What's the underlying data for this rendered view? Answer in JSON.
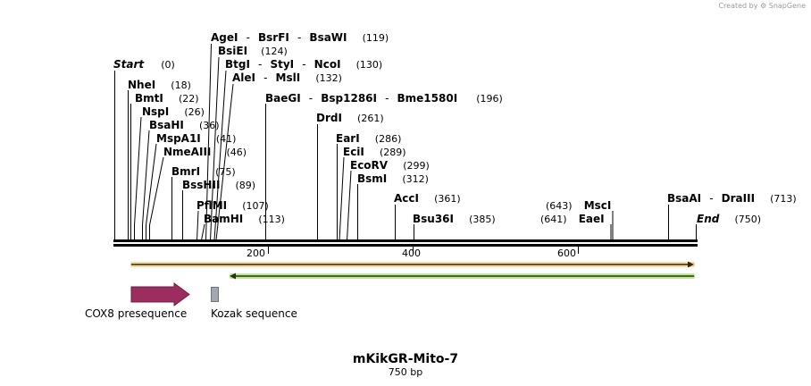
{
  "credit": {
    "prefix": "Created by",
    "brand": "SnapGene"
  },
  "map": {
    "name": "mKikGR-Mito-7",
    "length_label": "750 bp",
    "length_bp": 750,
    "ticks": [
      {
        "bp": 200,
        "label": "200"
      },
      {
        "bp": 400,
        "label": "400"
      },
      {
        "bp": 600,
        "label": "600"
      }
    ]
  },
  "sites": [
    {
      "id": "start",
      "names": [
        "Start"
      ],
      "pos": "(0)",
      "bp": 0,
      "italic": true
    },
    {
      "id": "nhei",
      "names": [
        "NheI"
      ],
      "pos": "(18)",
      "bp": 18
    },
    {
      "id": "bmti",
      "names": [
        "BmtI"
      ],
      "pos": "(22)",
      "bp": 22
    },
    {
      "id": "nspi",
      "names": [
        "NspI"
      ],
      "pos": "(26)",
      "bp": 26
    },
    {
      "id": "bsahi",
      "names": [
        "BsaHI"
      ],
      "pos": "(36)",
      "bp": 36
    },
    {
      "id": "mspa1i",
      "names": [
        "MspA1I"
      ],
      "pos": "(41)",
      "bp": 41
    },
    {
      "id": "nmeaiii",
      "names": [
        "NmeAIII"
      ],
      "pos": "(46)",
      "bp": 46
    },
    {
      "id": "bmri",
      "names": [
        "BmrI"
      ],
      "pos": "(75)",
      "bp": 75
    },
    {
      "id": "bsshii",
      "names": [
        "BssHII"
      ],
      "pos": "(89)",
      "bp": 89
    },
    {
      "id": "pflmi",
      "names": [
        "PflMI"
      ],
      "pos": "(107)",
      "bp": 107
    },
    {
      "id": "bamhi",
      "names": [
        "BamHI"
      ],
      "pos": "(113)",
      "bp": 113
    },
    {
      "id": "agei",
      "names": [
        "AgeI",
        "BsrFI",
        "BsaWI"
      ],
      "pos": "(119)",
      "bp": 119
    },
    {
      "id": "bsiei",
      "names": [
        "BsiEI"
      ],
      "pos": "(124)",
      "bp": 124
    },
    {
      "id": "btgi",
      "names": [
        "BtgI",
        "StyI",
        "NcoI"
      ],
      "pos": "(130)",
      "bp": 130
    },
    {
      "id": "alei",
      "names": [
        "AleI",
        "MslI"
      ],
      "pos": "(132)",
      "bp": 132
    },
    {
      "id": "baegi",
      "names": [
        "BaeGI",
        "Bsp1286I",
        "Bme1580I"
      ],
      "pos": "(196)",
      "bp": 196
    },
    {
      "id": "drdi",
      "names": [
        "DrdI"
      ],
      "pos": "(261)",
      "bp": 261
    },
    {
      "id": "eari",
      "names": [
        "EarI"
      ],
      "pos": "(286)",
      "bp": 286
    },
    {
      "id": "ecii",
      "names": [
        "EciI"
      ],
      "pos": "(289)",
      "bp": 289
    },
    {
      "id": "ecorv",
      "names": [
        "EcoRV"
      ],
      "pos": "(299)",
      "bp": 299
    },
    {
      "id": "bsmi",
      "names": [
        "BsmI"
      ],
      "pos": "(312)",
      "bp": 312
    },
    {
      "id": "acci",
      "names": [
        "AccI"
      ],
      "pos": "(361)",
      "bp": 361
    },
    {
      "id": "bsu36i",
      "names": [
        "Bsu36I"
      ],
      "pos": "(385)",
      "bp": 385
    },
    {
      "id": "msci",
      "names": [
        "MscI"
      ],
      "pos": "(643)",
      "bp": 643
    },
    {
      "id": "eaei",
      "names": [
        "EaeI"
      ],
      "pos": "(641)",
      "bp": 641
    },
    {
      "id": "bsaai",
      "names": [
        "BsaAI",
        "DraIII"
      ],
      "pos": "(713)",
      "bp": 713
    },
    {
      "id": "end",
      "names": [
        "End"
      ],
      "pos": "(750)",
      "bp": 750,
      "italic": true
    }
  ],
  "features": [
    {
      "id": "cox8",
      "label": "COX8 presequence",
      "color": "#9b2d5f",
      "type": "arrow"
    },
    {
      "id": "kozak",
      "label": "Kozak sequence",
      "color": "#a3a8b0",
      "type": "box"
    }
  ],
  "strands": [
    {
      "id": "orange-strand",
      "color": "#e8a33a",
      "direction": "forward"
    },
    {
      "id": "green-strand",
      "color": "#84cc3f",
      "direction": "reverse"
    }
  ]
}
